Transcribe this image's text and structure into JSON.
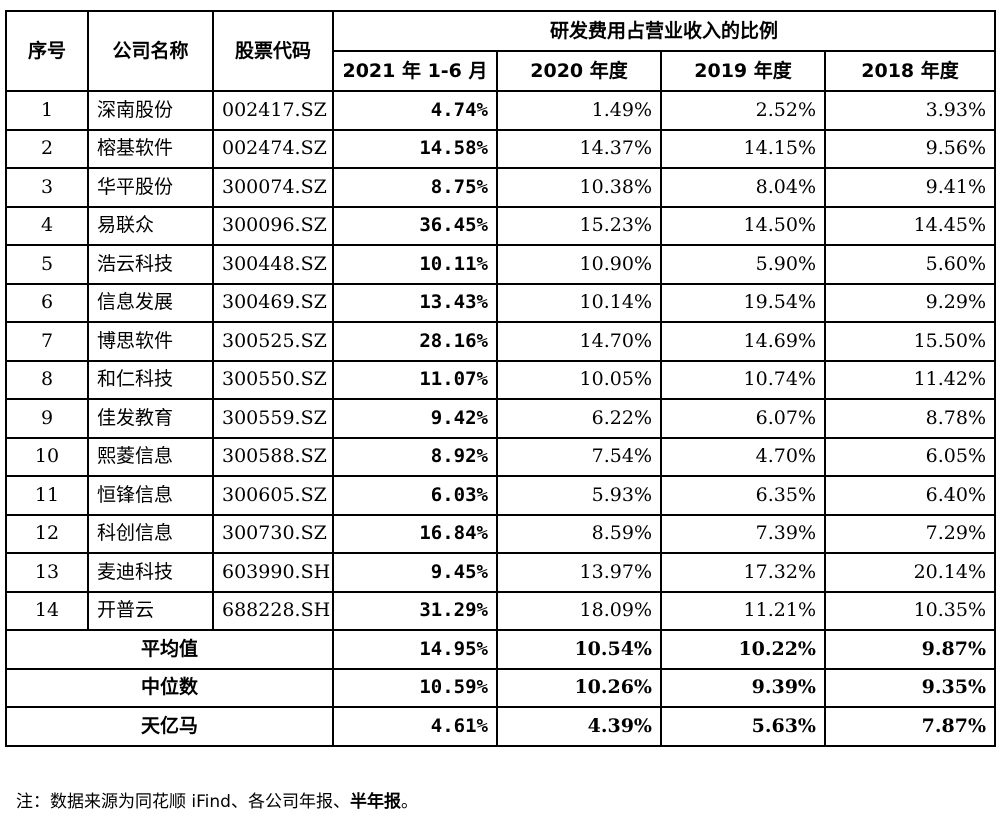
{
  "headers": {
    "seq": "序号",
    "company": "公司名称",
    "code": "股票代码",
    "ratio_group": "研发费用占营业收入的比例",
    "periods": [
      "2021 年 1-6 月",
      "2020 年度",
      "2019 年度",
      "2018 年度"
    ]
  },
  "rows": [
    {
      "seq": "1",
      "name": "深南股份",
      "code": "002417.SZ",
      "h2021": "4.74%",
      "y2020": "1.49%",
      "y2019": "2.52%",
      "y2018": "3.93%"
    },
    {
      "seq": "2",
      "name": "榕基软件",
      "code": "002474.SZ",
      "h2021": "14.58%",
      "y2020": "14.37%",
      "y2019": "14.15%",
      "y2018": "9.56%"
    },
    {
      "seq": "3",
      "name": "华平股份",
      "code": "300074.SZ",
      "h2021": "8.75%",
      "y2020": "10.38%",
      "y2019": "8.04%",
      "y2018": "9.41%"
    },
    {
      "seq": "4",
      "name": "易联众",
      "code": "300096.SZ",
      "h2021": "36.45%",
      "y2020": "15.23%",
      "y2019": "14.50%",
      "y2018": "14.45%"
    },
    {
      "seq": "5",
      "name": "浩云科技",
      "code": "300448.SZ",
      "h2021": "10.11%",
      "y2020": "10.90%",
      "y2019": "5.90%",
      "y2018": "5.60%"
    },
    {
      "seq": "6",
      "name": "信息发展",
      "code": "300469.SZ",
      "h2021": "13.43%",
      "y2020": "10.14%",
      "y2019": "19.54%",
      "y2018": "9.29%"
    },
    {
      "seq": "7",
      "name": "博思软件",
      "code": "300525.SZ",
      "h2021": "28.16%",
      "y2020": "14.70%",
      "y2019": "14.69%",
      "y2018": "15.50%"
    },
    {
      "seq": "8",
      "name": "和仁科技",
      "code": "300550.SZ",
      "h2021": "11.07%",
      "y2020": "10.05%",
      "y2019": "10.74%",
      "y2018": "11.42%"
    },
    {
      "seq": "9",
      "name": "佳发教育",
      "code": "300559.SZ",
      "h2021": "9.42%",
      "y2020": "6.22%",
      "y2019": "6.07%",
      "y2018": "8.78%"
    },
    {
      "seq": "10",
      "name": "熙菱信息",
      "code": "300588.SZ",
      "h2021": "8.92%",
      "y2020": "7.54%",
      "y2019": "4.70%",
      "y2018": "6.05%"
    },
    {
      "seq": "11",
      "name": "恒锋信息",
      "code": "300605.SZ",
      "h2021": "6.03%",
      "y2020": "5.93%",
      "y2019": "6.35%",
      "y2018": "6.40%"
    },
    {
      "seq": "12",
      "name": "科创信息",
      "code": "300730.SZ",
      "h2021": "16.84%",
      "y2020": "8.59%",
      "y2019": "7.39%",
      "y2018": "7.29%"
    },
    {
      "seq": "13",
      "name": "麦迪科技",
      "code": "603990.SH",
      "h2021": "9.45%",
      "y2020": "13.97%",
      "y2019": "17.32%",
      "y2018": "20.14%"
    },
    {
      "seq": "14",
      "name": "开普云",
      "code": "688228.SH",
      "h2021": "31.29%",
      "y2020": "18.09%",
      "y2019": "11.21%",
      "y2018": "10.35%"
    }
  ],
  "summary": [
    {
      "label": "平均值",
      "h2021": "14.95%",
      "y2020": "10.54%",
      "y2019": "10.22%",
      "y2018": "9.87%"
    },
    {
      "label": "中位数",
      "h2021": "10.59%",
      "y2020": "10.26%",
      "y2019": "9.39%",
      "y2018": "9.35%"
    },
    {
      "label": "天亿马",
      "h2021": "4.61%",
      "y2020": "4.39%",
      "y2019": "5.63%",
      "y2018": "7.87%"
    }
  ],
  "note": {
    "text": "注：数据来源为同花顺 iFind、各公司年报、",
    "bold": "半年报",
    "end": "。"
  }
}
